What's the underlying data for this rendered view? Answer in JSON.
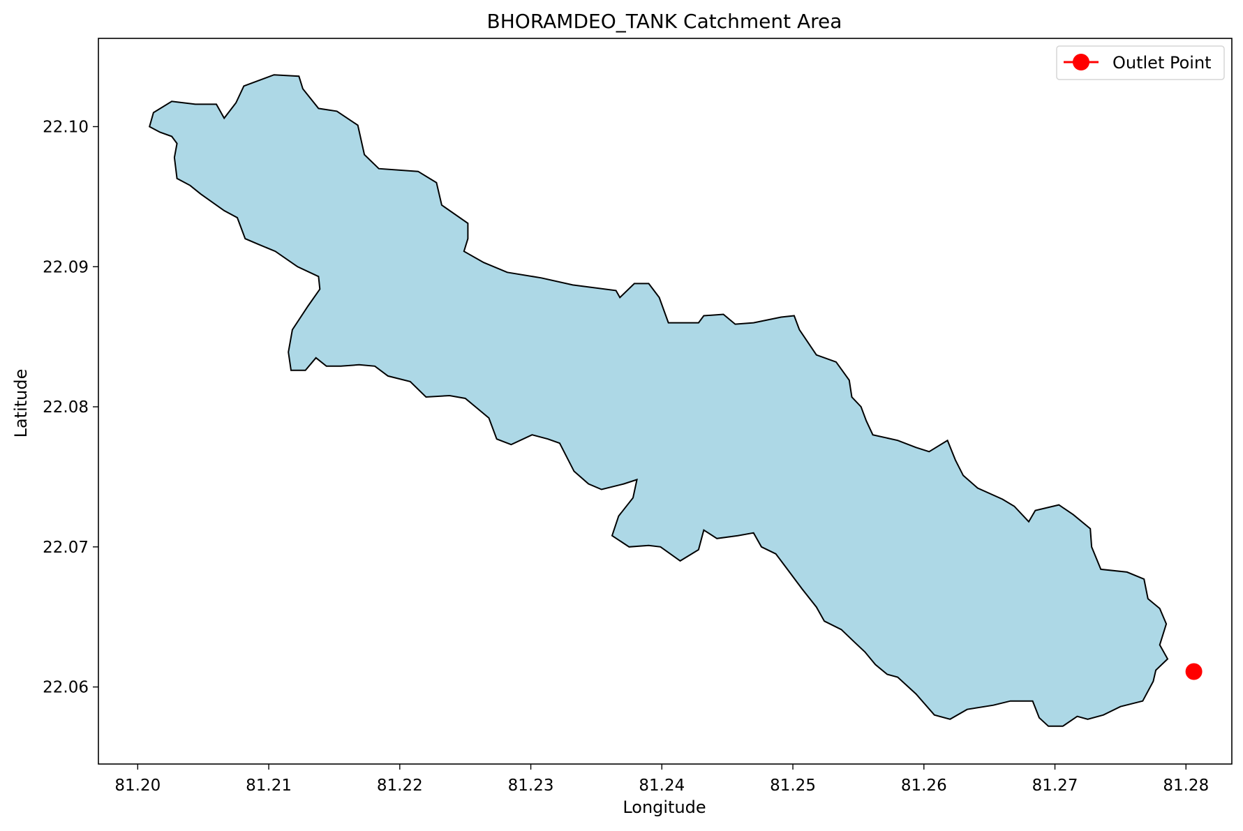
{
  "chart_data": {
    "type": "map",
    "title": "BHORAMDEO_TANK Catchment Area",
    "xlabel": "Longitude",
    "ylabel": "Latitude",
    "xlim": [
      81.197,
      81.2835
    ],
    "ylim": [
      22.0545,
      22.1063
    ],
    "xticks": [
      81.2,
      81.21,
      81.22,
      81.23,
      81.24,
      81.25,
      81.26,
      81.27,
      81.28
    ],
    "xtick_labels": [
      "81.20",
      "81.21",
      "81.22",
      "81.23",
      "81.24",
      "81.25",
      "81.26",
      "81.27",
      "81.28"
    ],
    "yticks": [
      22.06,
      22.07,
      22.08,
      22.09,
      22.1
    ],
    "ytick_labels": [
      "22.06",
      "22.07",
      "22.08",
      "22.09",
      "22.10"
    ],
    "grid": false,
    "legend": {
      "position": "upper-right",
      "entries": [
        {
          "label": "Outlet Point",
          "color": "#ff0000",
          "marker": "circle-line"
        }
      ]
    },
    "catchment": {
      "fill_color": "#add8e6",
      "edge_color": "#000000",
      "boundary": [
        [
          81.2009,
          22.1
        ],
        [
          81.2012,
          22.101
        ],
        [
          81.2026,
          22.1018
        ],
        [
          81.2044,
          22.1016
        ],
        [
          81.206,
          22.1016
        ],
        [
          81.2066,
          22.1006
        ],
        [
          81.2075,
          22.1017
        ],
        [
          81.2081,
          22.1029
        ],
        [
          81.2104,
          22.1037
        ],
        [
          81.2123,
          22.1036
        ],
        [
          81.2126,
          22.1027
        ],
        [
          81.2138,
          22.1013
        ],
        [
          81.2152,
          22.1011
        ],
        [
          81.2168,
          22.1001
        ],
        [
          81.2173,
          22.098
        ],
        [
          81.2184,
          22.097
        ],
        [
          81.2214,
          22.0968
        ],
        [
          81.2228,
          22.096
        ],
        [
          81.2232,
          22.0944
        ],
        [
          81.2252,
          22.0931
        ],
        [
          81.2252,
          22.092
        ],
        [
          81.2249,
          22.0911
        ],
        [
          81.2264,
          22.0903
        ],
        [
          81.2282,
          22.0896
        ],
        [
          81.2308,
          22.0892
        ],
        [
          81.2332,
          22.0887
        ],
        [
          81.2365,
          22.0883
        ],
        [
          81.2368,
          22.0878
        ],
        [
          81.2379,
          22.0888
        ],
        [
          81.239,
          22.0888
        ],
        [
          81.2398,
          22.0878
        ],
        [
          81.2405,
          22.086
        ],
        [
          81.2428,
          22.086
        ],
        [
          81.2432,
          22.0865
        ],
        [
          81.2447,
          22.0866
        ],
        [
          81.2456,
          22.0859
        ],
        [
          81.247,
          22.086
        ],
        [
          81.2491,
          22.0864
        ],
        [
          81.2501,
          22.0865
        ],
        [
          81.2505,
          22.0855
        ],
        [
          81.2518,
          22.0837
        ],
        [
          81.2533,
          22.0832
        ],
        [
          81.2543,
          22.0819
        ],
        [
          81.2545,
          22.0807
        ],
        [
          81.2552,
          22.08
        ],
        [
          81.2556,
          22.079
        ],
        [
          81.2561,
          22.078
        ],
        [
          81.258,
          22.0776
        ],
        [
          81.2594,
          22.0771
        ],
        [
          81.2604,
          22.0768
        ],
        [
          81.2618,
          22.0776
        ],
        [
          81.2624,
          22.0762
        ],
        [
          81.263,
          22.0751
        ],
        [
          81.2641,
          22.0742
        ],
        [
          81.266,
          22.0734
        ],
        [
          81.2669,
          22.0729
        ],
        [
          81.268,
          22.0718
        ],
        [
          81.2685,
          22.0726
        ],
        [
          81.2703,
          22.073
        ],
        [
          81.2714,
          22.0723
        ],
        [
          81.2727,
          22.0713
        ],
        [
          81.2728,
          22.07
        ],
        [
          81.2735,
          22.0684
        ],
        [
          81.2755,
          22.0682
        ],
        [
          81.2768,
          22.0677
        ],
        [
          81.2771,
          22.0663
        ],
        [
          81.278,
          22.0656
        ],
        [
          81.2785,
          22.0645
        ],
        [
          81.278,
          22.063
        ],
        [
          81.2786,
          22.062
        ],
        [
          81.2777,
          22.0612
        ],
        [
          81.2775,
          22.0604
        ],
        [
          81.2767,
          22.059
        ],
        [
          81.275,
          22.0586
        ],
        [
          81.2737,
          22.058
        ],
        [
          81.2725,
          22.0577
        ],
        [
          81.2717,
          22.0579
        ],
        [
          81.2706,
          22.0572
        ],
        [
          81.2695,
          22.0572
        ],
        [
          81.2688,
          22.0578
        ],
        [
          81.2683,
          22.059
        ],
        [
          81.2666,
          22.059
        ],
        [
          81.2653,
          22.0587
        ],
        [
          81.2633,
          22.0584
        ],
        [
          81.262,
          22.0577
        ],
        [
          81.2608,
          22.058
        ],
        [
          81.2594,
          22.0595
        ],
        [
          81.258,
          22.0607
        ],
        [
          81.2572,
          22.0609
        ],
        [
          81.2563,
          22.0616
        ],
        [
          81.2555,
          22.0625
        ],
        [
          81.2547,
          22.0632
        ],
        [
          81.2537,
          22.0641
        ],
        [
          81.2524,
          22.0647
        ],
        [
          81.2518,
          22.0657
        ],
        [
          81.2507,
          22.067
        ],
        [
          81.2495,
          22.0685
        ],
        [
          81.2487,
          22.0695
        ],
        [
          81.2476,
          22.07
        ],
        [
          81.247,
          22.071
        ],
        [
          81.2458,
          22.0708
        ],
        [
          81.2442,
          22.0706
        ],
        [
          81.2432,
          22.0712
        ],
        [
          81.2428,
          22.0698
        ],
        [
          81.2414,
          22.069
        ],
        [
          81.2399,
          22.07
        ],
        [
          81.239,
          22.0701
        ],
        [
          81.2375,
          22.07
        ],
        [
          81.2362,
          22.0708
        ],
        [
          81.2367,
          22.0722
        ],
        [
          81.2378,
          22.0735
        ],
        [
          81.2381,
          22.0748
        ],
        [
          81.2371,
          22.0745
        ],
        [
          81.2354,
          22.0741
        ],
        [
          81.2344,
          22.0745
        ],
        [
          81.2333,
          22.0754
        ],
        [
          81.2322,
          22.0774
        ],
        [
          81.2313,
          22.0777
        ],
        [
          81.2301,
          22.078
        ],
        [
          81.2285,
          22.0773
        ],
        [
          81.2274,
          22.0777
        ],
        [
          81.2268,
          22.0792
        ],
        [
          81.2259,
          22.0799
        ],
        [
          81.225,
          22.0806
        ],
        [
          81.2238,
          22.0808
        ],
        [
          81.222,
          22.0807
        ],
        [
          81.2208,
          22.0818
        ],
        [
          81.2191,
          22.0822
        ],
        [
          81.2181,
          22.0829
        ],
        [
          81.2169,
          22.083
        ],
        [
          81.2155,
          22.0829
        ],
        [
          81.2144,
          22.0829
        ],
        [
          81.2136,
          22.0835
        ],
        [
          81.2128,
          22.0826
        ],
        [
          81.2117,
          22.0826
        ],
        [
          81.2115,
          22.0839
        ],
        [
          81.2118,
          22.0855
        ],
        [
          81.213,
          22.0872
        ],
        [
          81.2139,
          22.0884
        ],
        [
          81.2138,
          22.0893
        ],
        [
          81.2122,
          22.09
        ],
        [
          81.2105,
          22.0911
        ],
        [
          81.2092,
          22.0916
        ],
        [
          81.2082,
          22.092
        ],
        [
          81.2076,
          22.0935
        ],
        [
          81.2066,
          22.094
        ],
        [
          81.2048,
          22.0952
        ],
        [
          81.204,
          22.0958
        ],
        [
          81.203,
          22.0963
        ],
        [
          81.2028,
          22.0978
        ],
        [
          81.203,
          22.0988
        ],
        [
          81.2026,
          22.0993
        ],
        [
          81.2017,
          22.0996
        ],
        [
          81.2009,
          22.1
        ]
      ]
    },
    "outlet_point": {
      "label": "Outlet Point",
      "lon": 81.2806,
      "lat": 22.0611,
      "color": "#ff0000"
    }
  }
}
